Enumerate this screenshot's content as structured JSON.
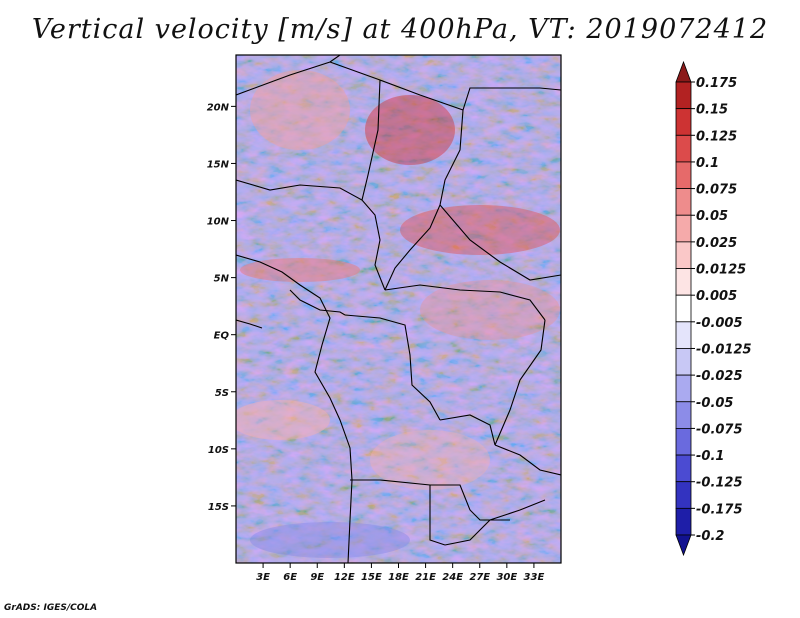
{
  "title": "Vertical velocity [m/s] at 400hPa, VT: 2019072412",
  "credit": "GrADS: IGES/COLA",
  "map": {
    "lon_range": [
      0,
      36
    ],
    "lat_range": [
      -20,
      24.5
    ],
    "x_ticks": [
      "3E",
      "6E",
      "9E",
      "12E",
      "15E",
      "18E",
      "21E",
      "24E",
      "27E",
      "30E",
      "33E"
    ],
    "x_tick_values": [
      3,
      6,
      9,
      12,
      15,
      18,
      21,
      24,
      27,
      30,
      33
    ],
    "y_ticks": [
      "20N",
      "15N",
      "10N",
      "5N",
      "EQ",
      "5S",
      "10S",
      "15S"
    ],
    "y_tick_values": [
      20,
      15,
      10,
      5,
      0,
      -5,
      -10,
      -15
    ]
  },
  "colorbar": {
    "labels": [
      "0.175",
      "0.15",
      "0.125",
      "0.1",
      "0.075",
      "0.05",
      "0.025",
      "0.0125",
      "0.005",
      "-0.005",
      "-0.0125",
      "-0.025",
      "-0.05",
      "-0.075",
      "-0.1",
      "-0.125",
      "-0.175",
      "-0.2"
    ],
    "colors": [
      "#8b1a1a",
      "#b22222",
      "#cd3333",
      "#dc4b4b",
      "#e66a6a",
      "#ee8c8c",
      "#f5aaaa",
      "#fac8c8",
      "#fde4e4",
      "#ffffff",
      "#e4e4fb",
      "#c8c8f5",
      "#aaaaf0",
      "#8c8ce8",
      "#6a6ade",
      "#4b4bd2",
      "#3333c0",
      "#1e1ea8",
      "#121290"
    ]
  }
}
